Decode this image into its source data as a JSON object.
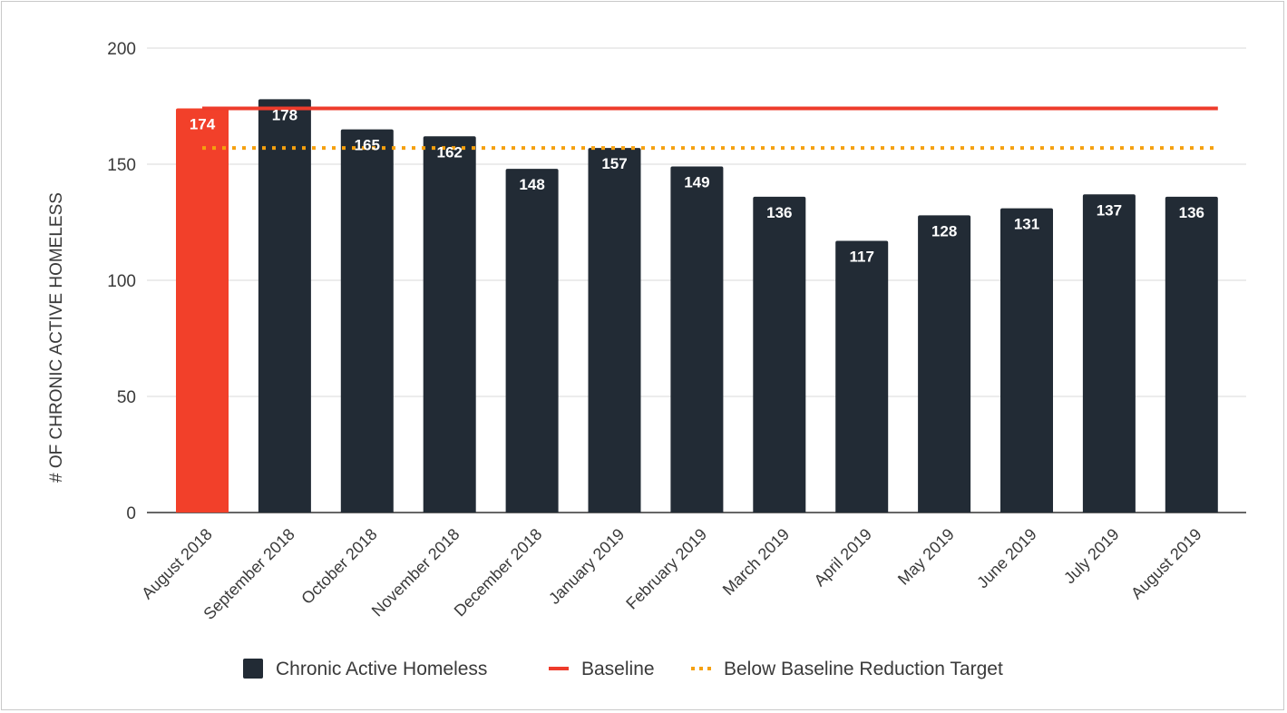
{
  "chart_data": {
    "type": "bar",
    "ylabel": "# OF CHRONIC ACTIVE HOMELESS",
    "ylim": [
      0,
      200
    ],
    "yticks": [
      0,
      50,
      100,
      150,
      200
    ],
    "grid": true,
    "legend_position": "bottom",
    "categories": [
      "August 2018",
      "September 2018",
      "October 2018",
      "November 2018",
      "December 2018",
      "January 2019",
      "February 2019",
      "March 2019",
      "April 2019",
      "May 2019",
      "June 2019",
      "July 2019",
      "August 2019"
    ],
    "series": [
      {
        "name": "Chronic Active Homeless",
        "type": "bar",
        "values": [
          174,
          178,
          165,
          162,
          148,
          157,
          149,
          136,
          117,
          128,
          131,
          137,
          136
        ],
        "color": "#222b35",
        "highlight_color": "#f2402a",
        "highlight_index": 0
      },
      {
        "name": "Baseline",
        "type": "line",
        "value": 174,
        "color": "#ee3b2b"
      },
      {
        "name": "Below Baseline Reduction Target",
        "type": "line",
        "style": "dotted",
        "value": 157,
        "color": "#f5a00f"
      }
    ]
  }
}
